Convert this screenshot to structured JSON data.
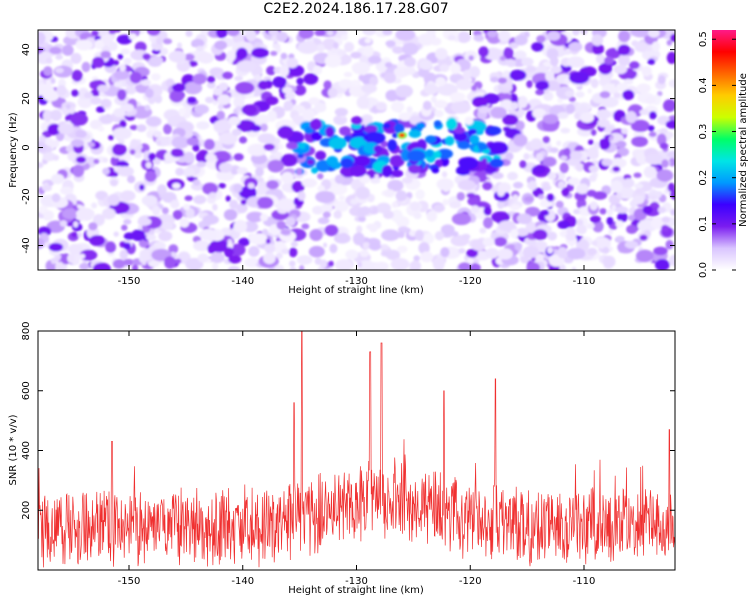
{
  "title": "C2E2.2024.186.17.28.G07",
  "colors": {
    "snr_line": "#f03030",
    "heatmap_low": "#e8d8ff",
    "heatmap_mid": "#7a1cf0",
    "heatmap_high": "#ff0000",
    "axis": "#000000",
    "background": "#ffffff"
  },
  "chart_data": [
    {
      "type": "heatmap",
      "xlabel": "Height of straight line (km)",
      "ylabel": "Frequency (Hz)",
      "xlim": [
        -158,
        -102
      ],
      "ylim": [
        -50,
        48
      ],
      "xticks": [
        -150,
        -140,
        -130,
        -120,
        -110
      ],
      "yticks": [
        -40,
        -20,
        0,
        20,
        40
      ],
      "colorbar": {
        "label": "Normalized spectral amplitude",
        "range": [
          0.0,
          0.52
        ],
        "ticks": [
          "0.0",
          "0.1",
          "0.2",
          "0.3",
          "0.4",
          "0.5"
        ],
        "stops": [
          "#ffffff",
          "#d9c4ff",
          "#7a1cf0",
          "#3b00ff",
          "#0099ff",
          "#00e5e5",
          "#00ff66",
          "#ccff00",
          "#ffcc00",
          "#ff6600",
          "#ff0000",
          "#ff1a88"
        ]
      },
      "peak": {
        "height_km": -126,
        "frequency_hz": 5,
        "amplitude": 0.45
      },
      "signal_band": {
        "height_range_km": [
          -135,
          -117
        ],
        "frequency_hz": [
          -10,
          10
        ]
      }
    },
    {
      "type": "line",
      "xlabel": "Height of straight line (km)",
      "ylabel": "SNR (10 * v/v)",
      "xlim": [
        -158,
        -102
      ],
      "ylim": [
        0,
        800
      ],
      "xticks": [
        -150,
        -140,
        -130,
        -120,
        -110
      ],
      "yticks": [
        200,
        400,
        600,
        800
      ],
      "series_summary": {
        "baseline_mean": 150,
        "peaks": [
          {
            "x": -134.8,
            "y": 800
          },
          {
            "x": -128.8,
            "y": 730
          },
          {
            "x": -127.8,
            "y": 760
          },
          {
            "x": -122.3,
            "y": 600
          },
          {
            "x": -117.8,
            "y": 640
          },
          {
            "x": -135.5,
            "y": 560
          },
          {
            "x": -102.5,
            "y": 470
          },
          {
            "x": -151.5,
            "y": 430
          }
        ]
      }
    }
  ]
}
